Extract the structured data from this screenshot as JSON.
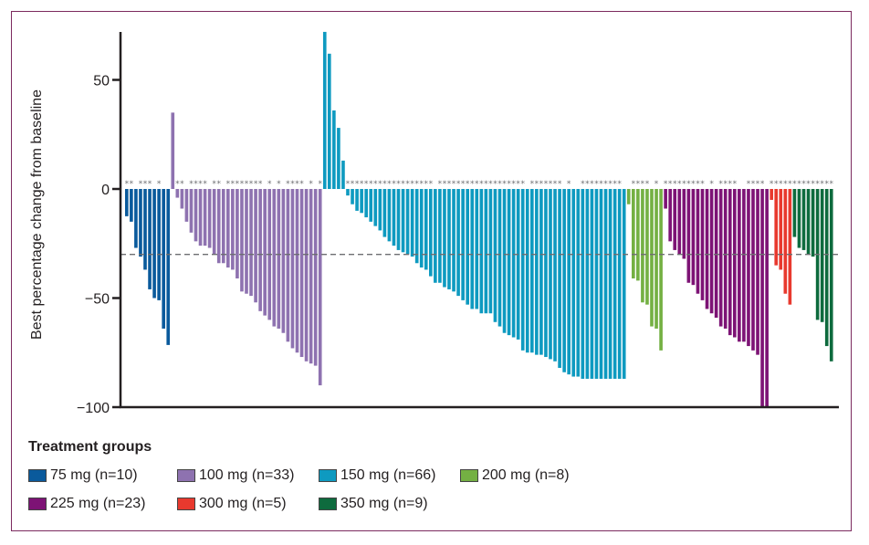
{
  "chart_data": {
    "type": "bar",
    "title": "",
    "xlabel": "",
    "ylabel": "Best percentage change from baseline",
    "ylim": [
      -100,
      72
    ],
    "yticks": [
      50,
      0,
      -50,
      -100
    ],
    "ytick_labels": [
      "50",
      "0",
      "−50",
      "−100"
    ],
    "reference_line": {
      "value": -30,
      "style": "dashed"
    },
    "legend_title": "Treatment groups",
    "legend_position": "bottom-left",
    "series": [
      {
        "name": "75 mg",
        "label": "75 mg  (n=10)",
        "n": 10,
        "color": "#0a5a9c",
        "values": [
          -12.5,
          -15,
          -27,
          -31,
          -37,
          -46,
          -50,
          -51,
          -64,
          -71.5
        ],
        "stars": [
          1,
          1,
          0,
          1,
          1,
          1,
          0,
          1,
          0,
          0
        ]
      },
      {
        "name": "100 mg",
        "label": "100 mg (n=33)",
        "n": 33,
        "color": "#8e72b0",
        "values": [
          35,
          -4,
          -9,
          -15,
          -20,
          -24,
          -26,
          -26,
          -27,
          -30,
          -34,
          -34,
          -36,
          -37,
          -41,
          -47,
          -48,
          -49,
          -52,
          -56,
          -58,
          -60,
          -63,
          -64,
          -66,
          -70,
          -73,
          -75,
          -77,
          -79,
          -80,
          -81,
          -90
        ],
        "stars": [
          0,
          1,
          1,
          0,
          1,
          1,
          1,
          1,
          0,
          1,
          1,
          0,
          1,
          1,
          1,
          1,
          1,
          1,
          1,
          1,
          0,
          1,
          0,
          1,
          0,
          1,
          1,
          1,
          1,
          0,
          1,
          0,
          1
        ]
      },
      {
        "name": "150 mg",
        "label": "150 mg (n=66)",
        "n": 66,
        "color": "#0e9ac0",
        "values": [
          72,
          62,
          36,
          28,
          13,
          -3,
          -7,
          -10,
          -11,
          -13,
          -15,
          -17,
          -19,
          -22,
          -24,
          -26,
          -28,
          -29,
          -30,
          -31,
          -34,
          -36,
          -37,
          -40,
          -43,
          -43,
          -45,
          -46,
          -47,
          -49,
          -51,
          -53,
          -55,
          -55,
          -57,
          -57,
          -57,
          -61,
          -63,
          -66,
          -67,
          -68,
          -69,
          -74,
          -75,
          -75,
          -76,
          -76,
          -77,
          -78,
          -79,
          -82,
          -84,
          -85,
          -86,
          -86,
          -87,
          -87,
          -87,
          -87,
          -87,
          -87,
          -87,
          -87,
          -87,
          -87
        ],
        "stars": [
          0,
          0,
          0,
          0,
          0,
          1,
          1,
          1,
          1,
          1,
          1,
          1,
          1,
          1,
          1,
          1,
          1,
          1,
          1,
          1,
          1,
          1,
          1,
          1,
          0,
          1,
          1,
          1,
          1,
          1,
          1,
          1,
          1,
          1,
          1,
          1,
          1,
          1,
          1,
          1,
          1,
          1,
          1,
          1,
          0,
          1,
          1,
          1,
          1,
          1,
          1,
          1,
          0,
          1,
          0,
          0,
          1,
          1,
          1,
          1,
          1,
          1,
          1,
          1,
          1,
          0
        ]
      },
      {
        "name": "200 mg",
        "label": "200 mg (n=8)",
        "n": 8,
        "color": "#74b043",
        "values": [
          -7,
          -41,
          -42,
          -52,
          -53,
          -63,
          -64,
          -74
        ],
        "stars": [
          0,
          1,
          1,
          1,
          1,
          0,
          1,
          0
        ]
      },
      {
        "name": "225 mg",
        "label": "225 mg (n=23)",
        "n": 23,
        "color": "#7d1375",
        "values": [
          -9,
          -24,
          -28,
          -30,
          -32,
          -43,
          -44,
          -48,
          -51,
          -55,
          -57,
          -59,
          -63,
          -64,
          -67,
          -68,
          -70,
          -70,
          -72,
          -74,
          -76,
          -100,
          -100
        ],
        "stars": [
          1,
          1,
          1,
          1,
          1,
          1,
          1,
          1,
          1,
          0,
          1,
          0,
          1,
          1,
          1,
          1,
          0,
          0,
          1,
          1,
          1,
          1,
          0
        ]
      },
      {
        "name": "300 mg",
        "label": "300 mg (n=5)",
        "n": 5,
        "color": "#e8392e",
        "values": [
          -5,
          -35,
          -37,
          -48,
          -53
        ],
        "stars": [
          1,
          1,
          1,
          1,
          1
        ]
      },
      {
        "name": "350 mg",
        "label": "350 mg (n=9)",
        "n": 9,
        "color": "#0e6b3e",
        "values": [
          -22,
          -27,
          -28,
          -30,
          -31,
          -60,
          -61,
          -72,
          -79
        ],
        "stars": [
          1,
          1,
          1,
          1,
          1,
          1,
          1,
          1,
          1
        ]
      }
    ]
  }
}
